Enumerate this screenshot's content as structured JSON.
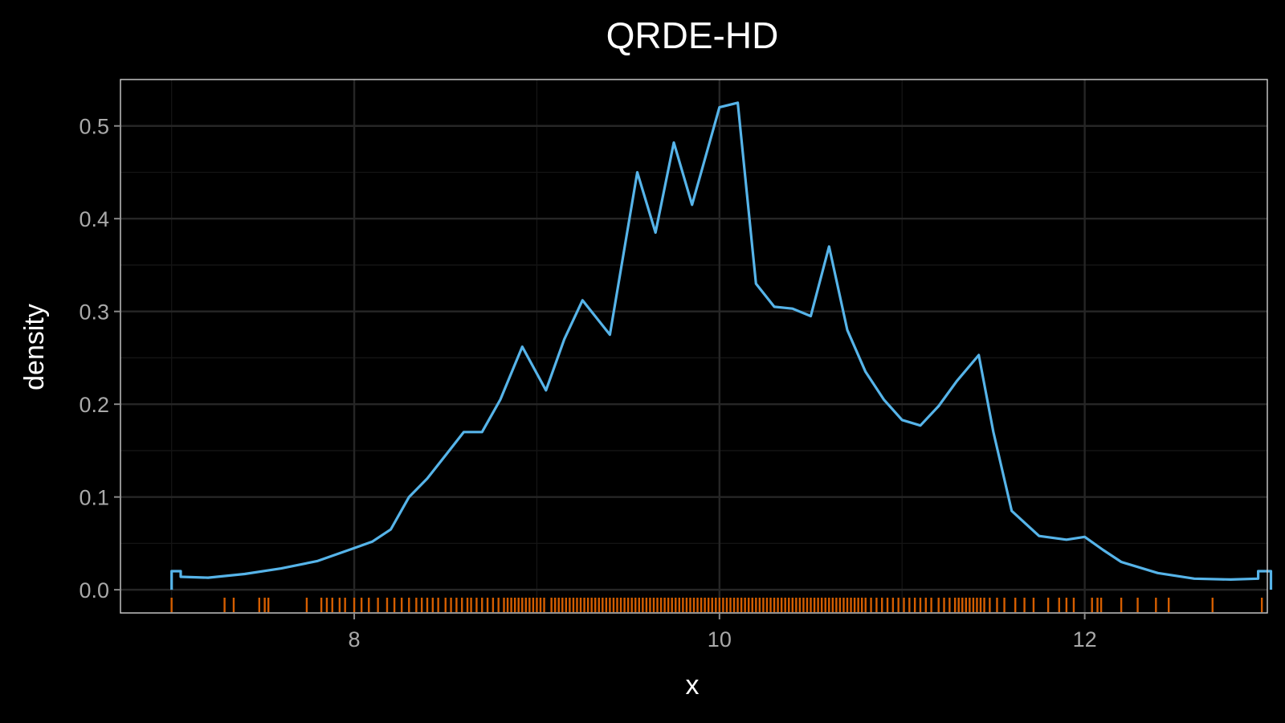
{
  "chart_data": {
    "type": "line",
    "title": "QRDE-HD",
    "xlabel": "x",
    "ylabel": "density",
    "xlim": [
      6.72,
      13.0
    ],
    "ylim": [
      -0.025,
      0.55
    ],
    "x_ticks": [
      8,
      10,
      12
    ],
    "x_tick_labels": [
      "8",
      "10",
      "12"
    ],
    "y_ticks": [
      0.0,
      0.1,
      0.2,
      0.3,
      0.4,
      0.5
    ],
    "y_tick_labels": [
      "0.0",
      "0.1",
      "0.2",
      "0.3",
      "0.4",
      "0.5"
    ],
    "grid": true,
    "legend": "none",
    "colors": {
      "background": "#000000",
      "panel_border": "#cfcfcf",
      "grid_major": "#262626",
      "grid_minor": "#151515",
      "density_line": "#56b4e9",
      "rug": "#d55e00",
      "text": "#ffffff",
      "tick_text": "#a9a9a9"
    },
    "series": [
      {
        "style": "stepped density line",
        "x": [
          7.0,
          7.0,
          7.05,
          7.05,
          7.2,
          7.4,
          7.6,
          7.8,
          8.0,
          8.1,
          8.2,
          8.3,
          8.4,
          8.5,
          8.6,
          8.7,
          8.8,
          8.92,
          9.05,
          9.15,
          9.25,
          9.4,
          9.55,
          9.65,
          9.75,
          9.85,
          10.0,
          10.1,
          10.2,
          10.3,
          10.4,
          10.5,
          10.6,
          10.7,
          10.8,
          10.9,
          11.0,
          11.1,
          11.2,
          11.3,
          11.42,
          11.5,
          11.6,
          11.75,
          11.9,
          12.0,
          12.1,
          12.2,
          12.4,
          12.6,
          12.8,
          12.95,
          12.95,
          13.02,
          13.02
        ],
        "y": [
          0.0,
          0.02,
          0.02,
          0.014,
          0.013,
          0.017,
          0.023,
          0.031,
          0.045,
          0.052,
          0.065,
          0.1,
          0.12,
          0.145,
          0.17,
          0.17,
          0.205,
          0.262,
          0.215,
          0.27,
          0.312,
          0.275,
          0.45,
          0.385,
          0.482,
          0.415,
          0.52,
          0.525,
          0.33,
          0.305,
          0.303,
          0.295,
          0.37,
          0.28,
          0.235,
          0.205,
          0.183,
          0.177,
          0.198,
          0.225,
          0.253,
          0.17,
          0.085,
          0.058,
          0.054,
          0.057,
          0.043,
          0.03,
          0.018,
          0.012,
          0.011,
          0.012,
          0.02,
          0.02,
          0.0
        ]
      }
    ],
    "rug": [
      7.0,
      7.29,
      7.34,
      7.48,
      7.51,
      7.53,
      7.74,
      7.82,
      7.85,
      7.88,
      7.92,
      7.95,
      8.0,
      8.04,
      8.08,
      8.13,
      8.18,
      8.22,
      8.26,
      8.3,
      8.34,
      8.37,
      8.4,
      8.43,
      8.46,
      8.5,
      8.53,
      8.56,
      8.59,
      8.62,
      8.64,
      8.67,
      8.7,
      8.73,
      8.76,
      8.79,
      8.82,
      8.84,
      8.86,
      8.88,
      8.9,
      8.92,
      8.94,
      8.96,
      8.98,
      9.0,
      9.02,
      9.04,
      9.08,
      9.1,
      9.12,
      9.14,
      9.16,
      9.18,
      9.2,
      9.22,
      9.24,
      9.26,
      9.28,
      9.3,
      9.32,
      9.34,
      9.36,
      9.38,
      9.4,
      9.42,
      9.44,
      9.46,
      9.48,
      9.5,
      9.52,
      9.54,
      9.56,
      9.58,
      9.6,
      9.62,
      9.64,
      9.66,
      9.68,
      9.7,
      9.72,
      9.74,
      9.76,
      9.78,
      9.8,
      9.82,
      9.84,
      9.86,
      9.88,
      9.9,
      9.92,
      9.94,
      9.96,
      9.98,
      10.0,
      10.02,
      10.04,
      10.06,
      10.08,
      10.1,
      10.12,
      10.14,
      10.16,
      10.18,
      10.2,
      10.22,
      10.24,
      10.26,
      10.28,
      10.3,
      10.32,
      10.34,
      10.36,
      10.38,
      10.4,
      10.42,
      10.44,
      10.46,
      10.48,
      10.5,
      10.52,
      10.54,
      10.56,
      10.58,
      10.6,
      10.62,
      10.64,
      10.66,
      10.68,
      10.7,
      10.72,
      10.74,
      10.76,
      10.78,
      10.8,
      10.83,
      10.86,
      10.89,
      10.92,
      10.95,
      10.98,
      11.01,
      11.04,
      11.07,
      11.1,
      11.13,
      11.16,
      11.2,
      11.23,
      11.26,
      11.29,
      11.31,
      11.33,
      11.35,
      11.37,
      11.39,
      11.41,
      11.43,
      11.45,
      11.48,
      11.52,
      11.56,
      11.62,
      11.67,
      11.72,
      11.8,
      11.86,
      11.9,
      11.94,
      12.04,
      12.07,
      12.09,
      12.2,
      12.29,
      12.39,
      12.46,
      12.7,
      12.97
    ]
  }
}
